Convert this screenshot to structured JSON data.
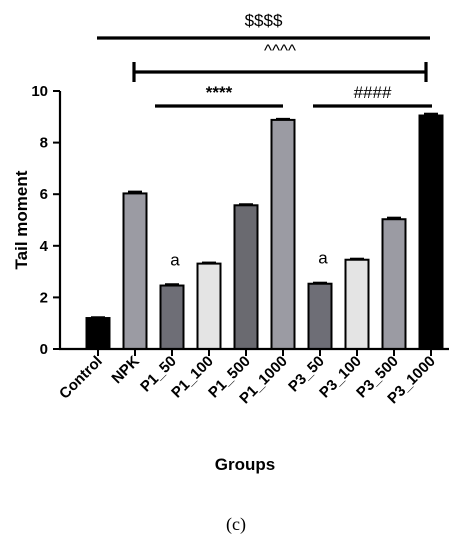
{
  "chart_data": {
    "type": "bar",
    "categories": [
      "Control",
      "NPK",
      "P1_50",
      "P1_100",
      "P1_500",
      "P1_1000",
      "P3_50",
      "P3_100",
      "P3_500",
      "P3_1000"
    ],
    "values": [
      1.2,
      6.03,
      2.46,
      3.31,
      5.57,
      8.88,
      2.53,
      3.46,
      5.03,
      9.05
    ],
    "errors": [
      0.03,
      0.07,
      0.05,
      0.04,
      0.04,
      0.04,
      0.04,
      0.04,
      0.06,
      0.07
    ],
    "bar_colors": [
      "#000000",
      "#9b9ba3",
      "#6e6e76",
      "#e4e4e4",
      "#6a6a70",
      "#9b9ba3",
      "#6e6e76",
      "#e4e4e4",
      "#9b9ba3",
      "#000000"
    ],
    "xlabel": "Groups",
    "ylabel": "Tail moment",
    "ylim": [
      0,
      10
    ],
    "yticks": [
      "0",
      "2",
      "4",
      "6",
      "8",
      "10"
    ],
    "grid": false,
    "annotations": [
      {
        "text": "a",
        "category": "P1_50"
      },
      {
        "text": "a",
        "category": "P3_50"
      }
    ],
    "significance": [
      {
        "text": "$$$$",
        "from": "Control",
        "to": "P3_1000"
      },
      {
        "text": "^^^^",
        "from": "NPK",
        "to": "P3_1000"
      },
      {
        "text": "****",
        "from": "P1_50",
        "to": "P1_1000"
      },
      {
        "text": "####",
        "from": "P3_50",
        "to": "P3_1000"
      }
    ],
    "panel_label": "(c)"
  }
}
